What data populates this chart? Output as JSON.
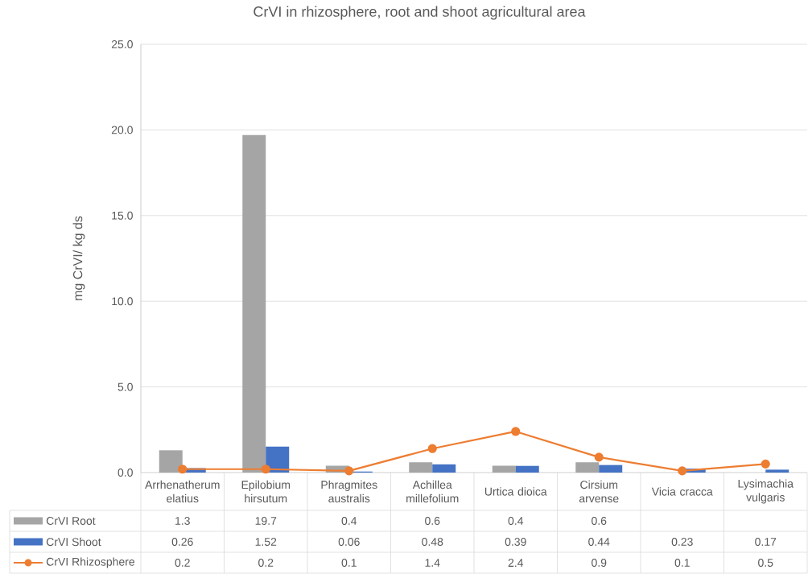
{
  "chart_data": {
    "type": "bar",
    "title": "CrVI in rhizosphere, root and shoot agricultural area",
    "ylabel": "mg CrVI/ kg ds",
    "categories": [
      "Arrhenatherum elatius",
      "Epilobium hirsutum",
      "Phragmites australis",
      "Achillea millefolium",
      "Urtica dioica",
      "Cirsium arvense",
      "Vicia cracca",
      "Lysimachia vulgaris"
    ],
    "series": [
      {
        "name": "CrVI Root",
        "color": "#a5a5a5",
        "values": [
          1.3,
          19.7,
          0.4,
          0.6,
          0.4,
          0.6,
          null,
          null
        ]
      },
      {
        "name": "CrVI Shoot",
        "color": "#4472c4",
        "values": [
          0.26,
          1.52,
          0.06,
          0.48,
          0.39,
          0.44,
          0.23,
          0.17
        ]
      },
      {
        "name": "CrVI Rhizosphere",
        "type": "line",
        "color": "#ed7d31",
        "marker": "circle",
        "line_style": "solid",
        "values": [
          0.2,
          0.2,
          0.1,
          1.4,
          2.4,
          0.9,
          0.1,
          0.5
        ]
      }
    ],
    "ylim": [
      0,
      25
    ],
    "yticks": [
      {
        "value": 0,
        "label": "0.0"
      },
      {
        "value": 5,
        "label": "5.0"
      },
      {
        "value": 10,
        "label": "10.0"
      },
      {
        "value": 15,
        "label": "15.0"
      },
      {
        "value": 20,
        "label": "20.0"
      },
      {
        "value": 25,
        "label": "25.0"
      }
    ],
    "grid": "y",
    "legend": "bottom",
    "data_labels": true
  }
}
